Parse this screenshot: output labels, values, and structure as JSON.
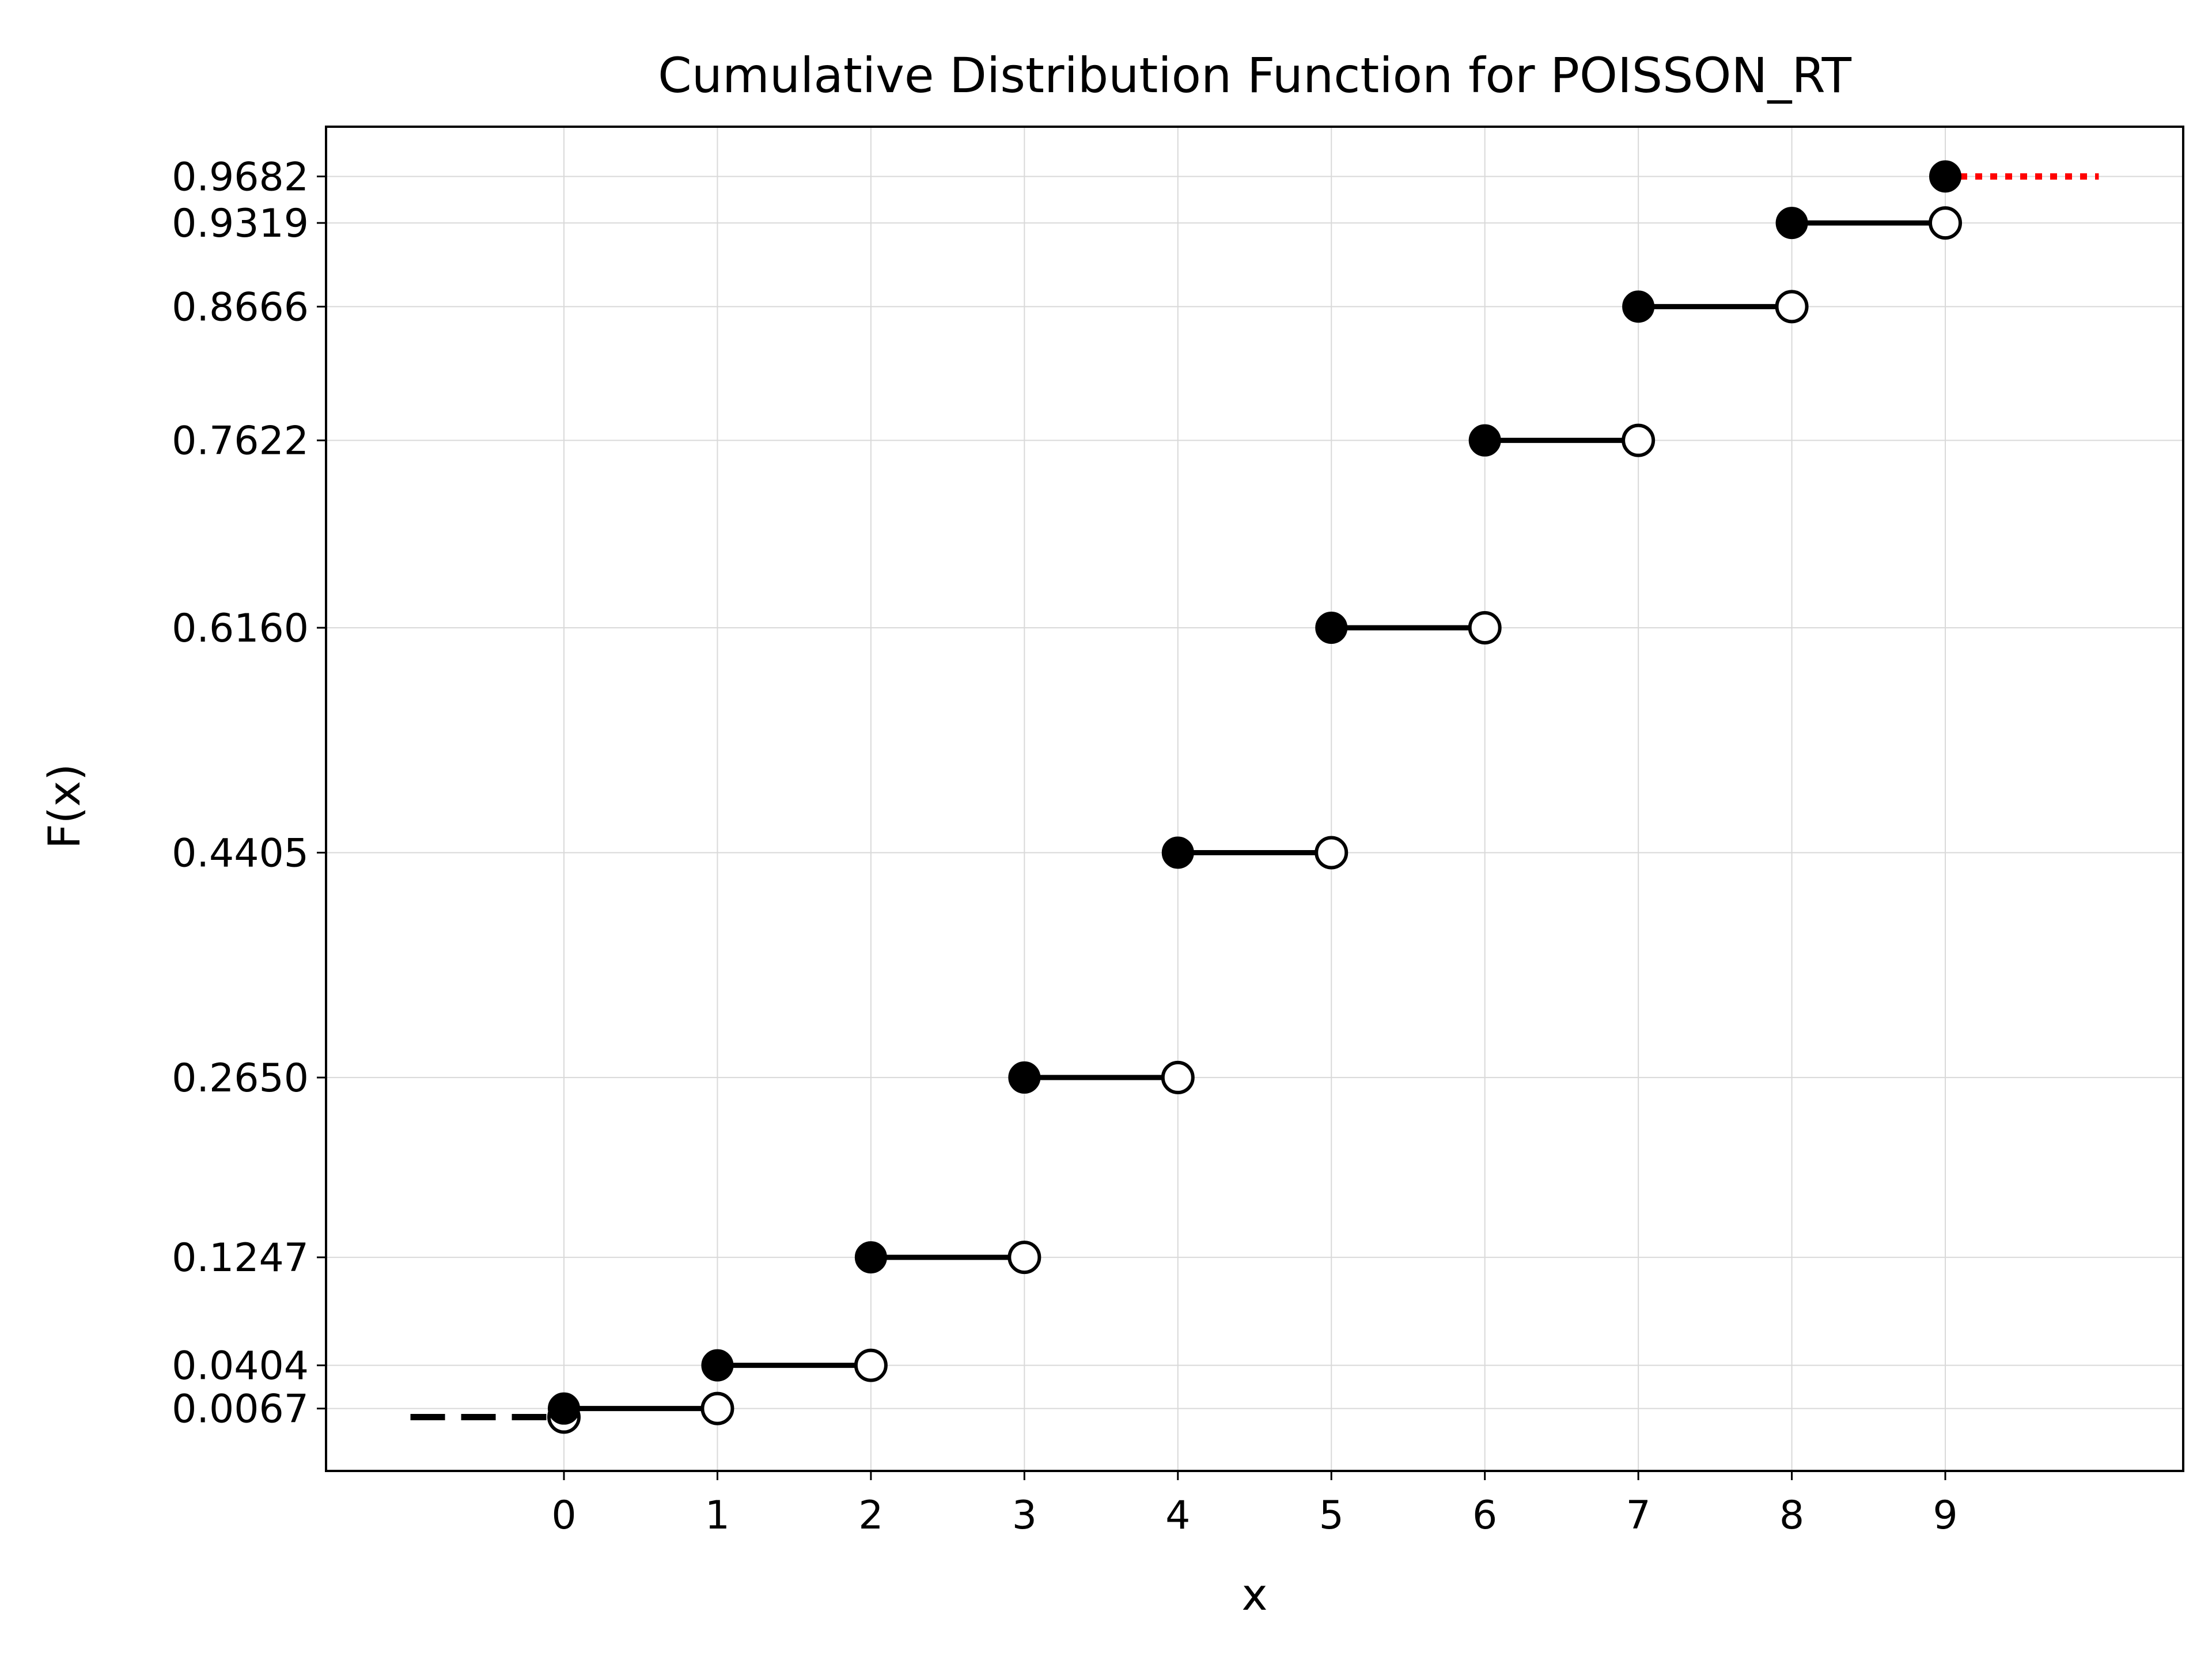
{
  "chart_data": {
    "type": "line",
    "title": "Cumulative Distribution Function for POISSON_RT",
    "xlabel": "x",
    "ylabel": "F(x)",
    "x_ticks": [
      "0",
      "1",
      "2",
      "3",
      "4",
      "5",
      "6",
      "7",
      "8",
      "9"
    ],
    "y_ticks": [
      "0.0067",
      "0.0404",
      "0.1247",
      "0.2650",
      "0.4405",
      "0.6160",
      "0.7622",
      "0.8666",
      "0.9319",
      "0.9682"
    ],
    "xlim": [
      -1.55,
      10.55
    ],
    "ylim": [
      -0.042,
      1.007
    ],
    "grid": true,
    "steps": [
      {
        "x": 0,
        "y": 0.0067
      },
      {
        "x": 1,
        "y": 0.0404
      },
      {
        "x": 2,
        "y": 0.1247
      },
      {
        "x": 3,
        "y": 0.265
      },
      {
        "x": 4,
        "y": 0.4405
      },
      {
        "x": 5,
        "y": 0.616
      },
      {
        "x": 6,
        "y": 0.7622
      },
      {
        "x": 7,
        "y": 0.8666
      },
      {
        "x": 8,
        "y": 0.9319
      },
      {
        "x": 9,
        "y": 0.9682
      }
    ],
    "left_tail": {
      "x_from": -1,
      "x_to": 0,
      "y": 0.0
    },
    "right_tail": {
      "x_from": 9,
      "x_to": 10,
      "y": 0.9682
    },
    "colors": {
      "step": "#000000",
      "tail_right": "#ff0000",
      "grid": "#d9d9d9",
      "open_fill": "#ffffff"
    }
  }
}
